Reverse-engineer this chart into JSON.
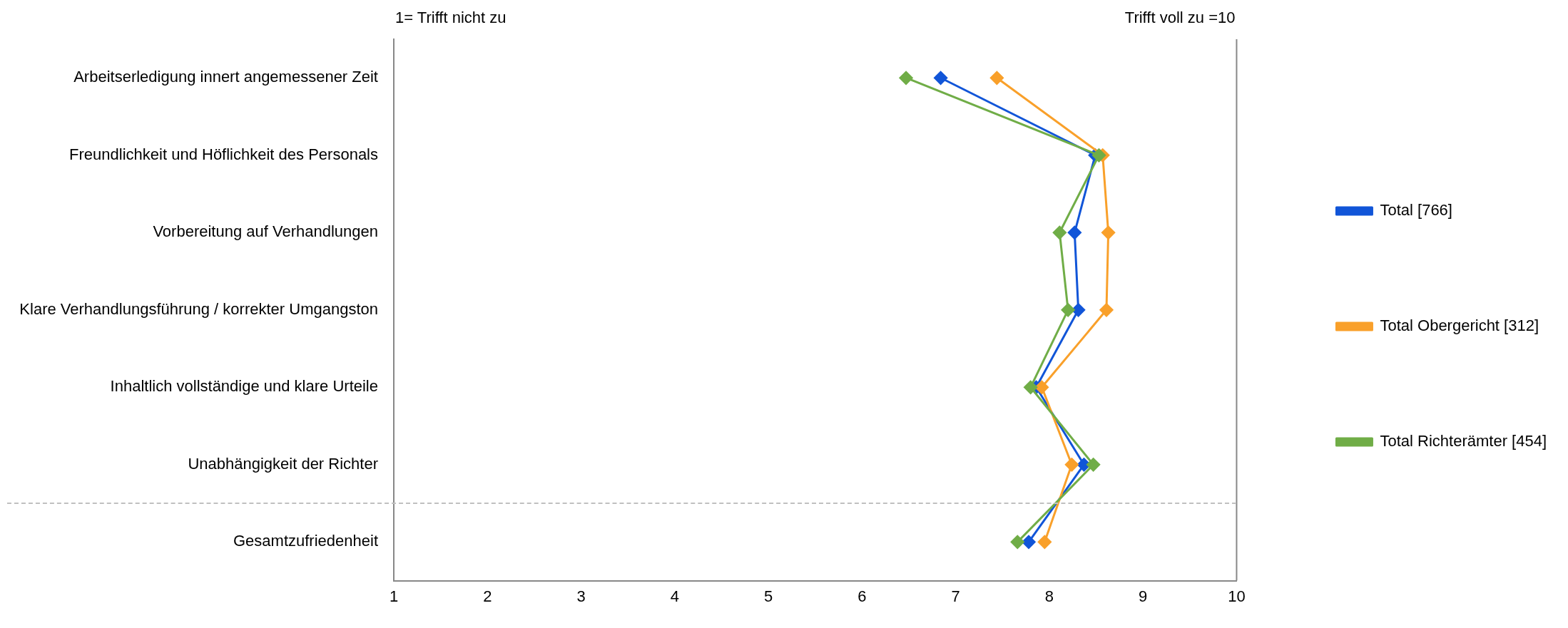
{
  "chart_data": {
    "type": "line",
    "orientation": "horizontal",
    "categories": [
      "Arbeitserledigung innert angemessener Zeit",
      "Freundlichkeit und Höflichkeit des Personals",
      "Vorbereitung auf Verhandlungen",
      "Klare Verhandlungsführung / korrekter Umgangston",
      "Inhaltlich vollständige und klare Urteile",
      "Unabhängigkeit der Richter",
      "Gesamtzufriedenheit"
    ],
    "series": [
      {
        "name": "Total [766]",
        "color": "#1155d8",
        "values": [
          6.84,
          8.49,
          8.27,
          8.31,
          7.86,
          8.37,
          7.78
        ]
      },
      {
        "name": "Total Obergericht [312]",
        "color": "#f9a02a",
        "values": [
          7.44,
          8.57,
          8.63,
          8.61,
          7.92,
          8.24,
          7.95
        ]
      },
      {
        "name": "Total Richterämter [454]",
        "color": "#70ad47",
        "values": [
          6.47,
          8.53,
          8.11,
          8.2,
          7.8,
          8.47,
          7.66
        ]
      }
    ],
    "xlim": [
      1,
      10
    ],
    "xticks": [
      1,
      2,
      3,
      4,
      5,
      6,
      7,
      8,
      9,
      10
    ],
    "annotations": [
      "1= Trifft nicht zu",
      "Trifft voll zu =10"
    ],
    "marker": "diamond",
    "line_style": "solid",
    "grid": false,
    "legend": "right"
  }
}
